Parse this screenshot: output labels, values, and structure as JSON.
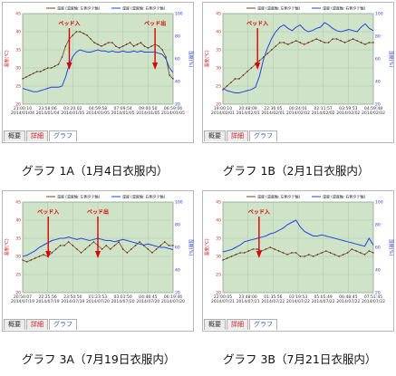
{
  "legend": {
    "temp": "温度 (温度軸: 左側タテ軸)",
    "humid": "湿度 (湿度軸: 右側タテ軸)"
  },
  "left_axis_label": "温度(℃)",
  "right_axis_label": "湿度(%)",
  "tabs": [
    "概要",
    "詳細",
    "グラフ"
  ],
  "colors": {
    "temp": "#8b3a1a",
    "humid": "#2244dd",
    "plot_bg": "#cfe3c8",
    "annotation": "#dd0000"
  },
  "panels": [
    {
      "caption": "グラフ 1A（1月4日衣服内）",
      "ylim_left": [
        20,
        45
      ],
      "ylim_right": [
        20,
        100
      ],
      "left_ticks": [
        "45",
        "40",
        "35",
        "30",
        "25",
        "20"
      ],
      "right_ticks": [
        "100",
        "80",
        "60",
        "40",
        "20"
      ],
      "xticks": [
        "21:00:10\n2014/01/04",
        "23:58:06\n2014/01/04",
        "03:20:02\n2014/01/05",
        "04:59:58\n2014/01/05",
        "07:09:54\n2014/01/05",
        "09:00:50\n2014/01/05",
        "06:59:06\n2014/01/05"
      ],
      "annotations": [
        {
          "text": "ベッド入",
          "x": 0.31
        },
        {
          "text": "ベッド出",
          "x": 0.88
        }
      ]
    },
    {
      "caption": "グラフ 1B（2月1日衣服内）",
      "ylim_left": [
        20,
        45
      ],
      "ylim_right": [
        20,
        100
      ],
      "left_ticks": [
        "45",
        "40",
        "35",
        "30",
        "25",
        "20"
      ],
      "right_ticks": [
        "100",
        "80",
        "60",
        "40",
        "20"
      ],
      "xticks": [
        "19:00:10\n2014/02/01",
        "20:48:09\n2014/02/01",
        "22:36:05\n2014/02/01",
        "00:24:01\n2014/02/02",
        "02:11:57\n2014/02/02",
        "03:59:53\n2014/02/02",
        "04:59:48\n2014/02/02"
      ],
      "annotations": [
        {
          "text": "ベッド入",
          "x": 0.23
        }
      ]
    },
    {
      "caption": "グラフ 3A（7月19日衣服内）",
      "ylim_left": [
        20,
        45
      ],
      "ylim_right": [
        20,
        100
      ],
      "left_ticks": [
        "45",
        "40",
        "35",
        "30",
        "25",
        "20"
      ],
      "right_ticks": [
        "100",
        "80",
        "60",
        "40",
        "20"
      ],
      "xticks": [
        "20:50:07\n2014/07/19",
        "22:25:56\n2014/07/19",
        "23:50:50\n2014/07/19",
        "01:23:53\n2014/07/20",
        "03:01:50\n2014/07/20",
        "04:46:45\n2014/07/20",
        "06:19:46\n2014/07/20"
      ],
      "annotations": [
        {
          "text": "ベッド入",
          "x": 0.17
        },
        {
          "text": "ベッド出",
          "x": 0.5
        }
      ]
    },
    {
      "caption": "グラフ 3B（7月21日衣服内）",
      "ylim_left": [
        20,
        45
      ],
      "ylim_right": [
        20,
        100
      ],
      "left_ticks": [
        "45",
        "40",
        "35",
        "30",
        "25",
        "20"
      ],
      "right_ticks": [
        "100",
        "80",
        "60",
        "40",
        "20"
      ],
      "xticks": [
        "22:00:05\n2014/07/21",
        "23:48:00\n2014/07/21",
        "01:35:56\n2014/07/22",
        "03:19:53\n2014/07/22",
        "05:05:49\n2014/07/22",
        "06:48:45\n2014/07/22",
        "07:51:45\n2014/07/22"
      ],
      "annotations": [
        {
          "text": "ベッド入",
          "x": 0.24
        }
      ]
    }
  ],
  "chart_data": [
    {
      "type": "line",
      "series": [
        {
          "name": "温度 (温度軸: 左側タテ軸)",
          "axis": "left",
          "values": [
            27,
            27.5,
            28,
            28.5,
            29,
            29,
            29.5,
            30,
            30,
            30.5,
            31,
            33,
            36,
            38,
            39,
            40,
            40,
            39.5,
            39,
            38,
            37,
            36.5,
            36,
            36.5,
            37,
            37,
            36,
            35.5,
            36,
            36.5,
            37,
            36,
            36.5,
            37,
            36,
            35.5,
            36,
            36.5,
            36,
            35,
            33,
            28,
            27
          ]
        },
        {
          "name": "湿度 (湿度軸: 右側タテ軸)",
          "axis": "right",
          "values": [
            34,
            33,
            32,
            31,
            31,
            32,
            33,
            34,
            35,
            35,
            35,
            36,
            44,
            55,
            62,
            66,
            68,
            67,
            66,
            66,
            67,
            68,
            67,
            67,
            66,
            67,
            66,
            66,
            67,
            66,
            66,
            67,
            66,
            67,
            66,
            66,
            66,
            66,
            65,
            64,
            60,
            52,
            48
          ]
        }
      ]
    },
    {
      "type": "line",
      "series": [
        {
          "name": "温度 (温度軸: 左側タテ軸)",
          "axis": "left",
          "values": [
            24,
            25,
            26,
            27,
            27,
            28,
            29,
            30,
            31,
            32,
            33,
            34,
            35,
            36,
            37,
            37,
            36.5,
            37,
            37.5,
            37,
            36.5,
            37,
            37.5,
            38,
            37.5,
            37,
            37,
            38,
            38,
            37.5,
            37,
            37.5,
            38,
            37.5,
            37,
            36.5,
            37,
            37
          ]
        },
        {
          "name": "湿度 (湿度軸: 右側タテ軸)",
          "axis": "right",
          "values": [
            34,
            32,
            31,
            30,
            30,
            31,
            32,
            33,
            35,
            45,
            60,
            70,
            78,
            84,
            88,
            90,
            87,
            85,
            88,
            90,
            86,
            84,
            85,
            87,
            88,
            92,
            90,
            87,
            85,
            84,
            85,
            86,
            85,
            84,
            88,
            91,
            87,
            85
          ]
        }
      ]
    },
    {
      "type": "line",
      "series": [
        {
          "name": "温度 (温度軸: 左側タテ軸)",
          "axis": "left",
          "values": [
            29,
            28.5,
            29,
            29.5,
            30,
            30.5,
            30,
            31,
            32,
            33,
            33,
            34,
            33,
            32,
            31,
            32,
            33,
            34,
            33,
            32,
            33,
            32,
            33,
            34,
            32,
            31,
            32,
            33,
            34,
            33,
            32,
            31,
            32,
            33,
            34,
            33,
            33
          ]
        },
        {
          "name": "湿度 (湿度軸: 右側タテ軸)",
          "axis": "right",
          "values": [
            52,
            53,
            55,
            57,
            60,
            62,
            64,
            66,
            67,
            68,
            68,
            69,
            68,
            67,
            68,
            67,
            66,
            67,
            68,
            67,
            66,
            66,
            65,
            66,
            67,
            66,
            65,
            64,
            63,
            62,
            63,
            62,
            61,
            60,
            60,
            59,
            58
          ]
        }
      ]
    },
    {
      "type": "line",
      "series": [
        {
          "name": "温度 (温度軸: 左側タテ軸)",
          "axis": "left",
          "values": [
            29,
            29.5,
            30,
            30.5,
            31,
            31,
            31.5,
            32,
            32,
            31.5,
            32,
            32.5,
            32,
            31.5,
            31,
            30.5,
            31,
            31,
            30,
            30,
            30.5,
            30,
            30.5,
            31,
            31.5,
            31,
            30.5,
            30,
            30.5,
            31,
            32,
            31.5,
            31,
            30.5,
            31.5,
            31
          ]
        },
        {
          "name": "湿度 (湿度軸: 右側タテ軸)",
          "axis": "right",
          "values": [
            56,
            57,
            58,
            60,
            62,
            65,
            66,
            67,
            68,
            69,
            70,
            72,
            73,
            75,
            77,
            80,
            82,
            84,
            78,
            74,
            72,
            70,
            70,
            71,
            70,
            69,
            68,
            67,
            66,
            65,
            64,
            63,
            62,
            61,
            68,
            62
          ]
        }
      ]
    }
  ]
}
